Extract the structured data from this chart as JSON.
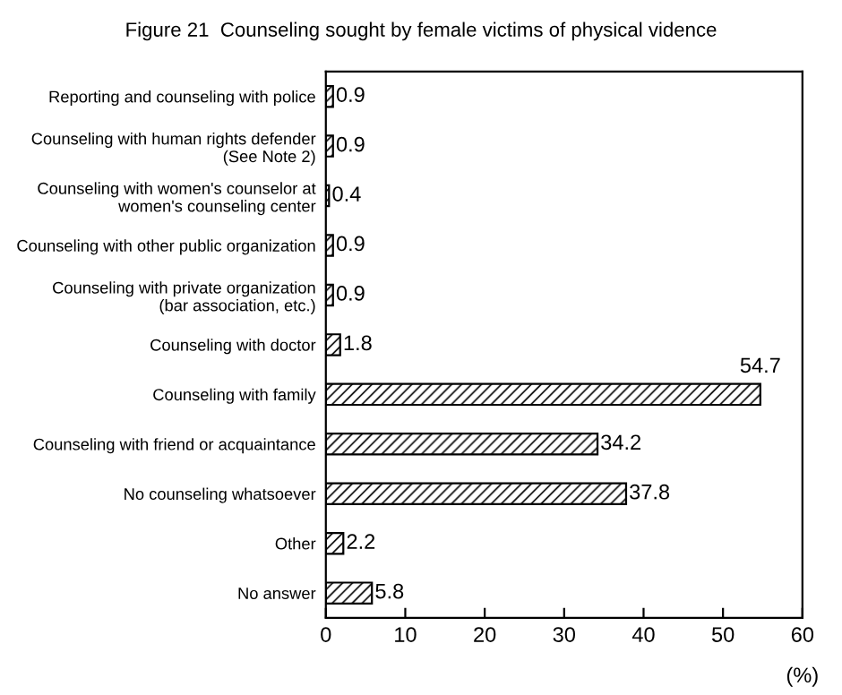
{
  "chart_data": {
    "type": "bar",
    "orientation": "horizontal",
    "title": "Figure 21  Counseling sought by female victims of physical vidence",
    "xlabel": "(%)",
    "categories": [
      "Reporting and counseling with police",
      "Counseling with human rights defender\n(See Note 2)",
      "Counseling with women's counselor at\nwomen's counseling center",
      "Counseling with other public organization",
      "Counseling with private organization\n(bar association, etc.)",
      "Counseling with doctor",
      "Counseling with family",
      "Counseling with friend or acquaintance",
      "No counseling whatsoever",
      "Other",
      "No answer"
    ],
    "values": [
      0.9,
      0.9,
      0.4,
      0.9,
      0.9,
      1.8,
      54.7,
      34.2,
      37.8,
      2.2,
      5.8
    ],
    "color": "#000000",
    "xlim": [
      0,
      60
    ],
    "xticks": [
      0,
      10,
      20,
      30,
      40,
      50,
      60
    ],
    "data_labels": true,
    "grid": false,
    "legend": false
  }
}
